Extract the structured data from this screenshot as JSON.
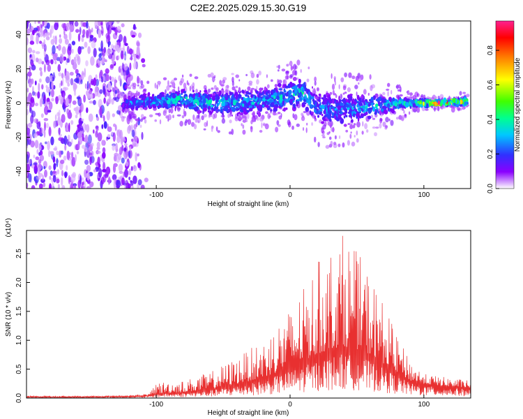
{
  "title": "C2E2.2025.029.15.30.G19",
  "colors": {
    "snr_line": "#e83030",
    "colormap": [
      "#ffffff",
      "#8a00ff",
      "#3030ff",
      "#00c8ff",
      "#00ff90",
      "#40ff00",
      "#ffff00",
      "#ff8000",
      "#ff0000",
      "#ff2090"
    ]
  },
  "chart_data": [
    {
      "type": "heatmap",
      "title": "C2E2.2025.029.15.30.G19",
      "xlabel": "Height of straight line (km)",
      "ylabel": "Frequency (Hz)",
      "xlim": [
        -197,
        135
      ],
      "ylim": [
        -50,
        48
      ],
      "xticks": [
        -100,
        0,
        100
      ],
      "yticks": [
        -40,
        -20,
        0,
        20,
        40
      ],
      "colorbar": {
        "label": "Normalized spectral amplitude",
        "range": [
          0,
          0.97
        ],
        "ticks": [
          "0.0",
          "0.2",
          "0.4",
          "0.6",
          "0.8"
        ]
      },
      "noise_region_x": [
        -197,
        -107
      ],
      "signal_band": [
        {
          "x": -125,
          "center": 0,
          "halfwidth": 6,
          "peak": 0.25
        },
        {
          "x": -100,
          "center": 1,
          "halfwidth": 7,
          "peak": 0.35
        },
        {
          "x": -80,
          "center": 2,
          "halfwidth": 8,
          "peak": 0.4
        },
        {
          "x": -60,
          "center": 0,
          "halfwidth": 9,
          "peak": 0.4
        },
        {
          "x": -40,
          "center": 0,
          "halfwidth": 10,
          "peak": 0.35
        },
        {
          "x": -20,
          "center": 1,
          "halfwidth": 10,
          "peak": 0.35
        },
        {
          "x": 0,
          "center": 4,
          "halfwidth": 11,
          "peak": 0.4
        },
        {
          "x": 10,
          "center": 6,
          "halfwidth": 12,
          "peak": 0.4
        },
        {
          "x": 20,
          "center": -3,
          "halfwidth": 12,
          "peak": 0.3
        },
        {
          "x": 40,
          "center": -4,
          "halfwidth": 13,
          "peak": 0.3
        },
        {
          "x": 60,
          "center": -2,
          "halfwidth": 10,
          "peak": 0.35
        },
        {
          "x": 85,
          "center": 0,
          "halfwidth": 5,
          "peak": 0.4
        },
        {
          "x": 90,
          "center": 0,
          "halfwidth": 3,
          "peak": 0.55
        },
        {
          "x": 110,
          "center": 0,
          "halfwidth": 2,
          "peak": 0.95
        },
        {
          "x": 133,
          "center": 1,
          "halfwidth": 3,
          "peak": 0.6
        }
      ]
    },
    {
      "type": "line",
      "xlabel": "Height of straight line (km)",
      "ylabel": "SNR (10 * v/v)",
      "y_multiplier": "(x10⁴)",
      "xlim": [
        -197,
        135
      ],
      "ylim": [
        0,
        2.9
      ],
      "xticks": [
        -100,
        0,
        100
      ],
      "yticks": [
        "0.0",
        "0.5",
        "1.0",
        "1.5",
        "2.0",
        "2.5"
      ],
      "series": [
        {
          "x": [
            -197,
            -150,
            -120,
            -105,
            -100,
            -80,
            -60,
            -40,
            -20,
            -10,
            0,
            10,
            20,
            30,
            40,
            50,
            60,
            70,
            80,
            90,
            100,
            110,
            120,
            135
          ],
          "y_mean": [
            0.02,
            0.02,
            0.03,
            0.04,
            0.08,
            0.1,
            0.15,
            0.25,
            0.35,
            0.45,
            0.55,
            0.65,
            0.75,
            0.85,
            0.9,
            0.85,
            0.75,
            0.6,
            0.45,
            0.3,
            0.25,
            0.22,
            0.2,
            0.18
          ],
          "y_max": [
            0.04,
            0.04,
            0.05,
            0.08,
            0.28,
            0.3,
            0.45,
            0.7,
            1.0,
            1.3,
            1.55,
            1.9,
            2.35,
            2.6,
            2.88,
            2.55,
            2.15,
            1.65,
            1.05,
            0.65,
            0.42,
            0.38,
            0.35,
            0.3
          ]
        }
      ]
    }
  ]
}
